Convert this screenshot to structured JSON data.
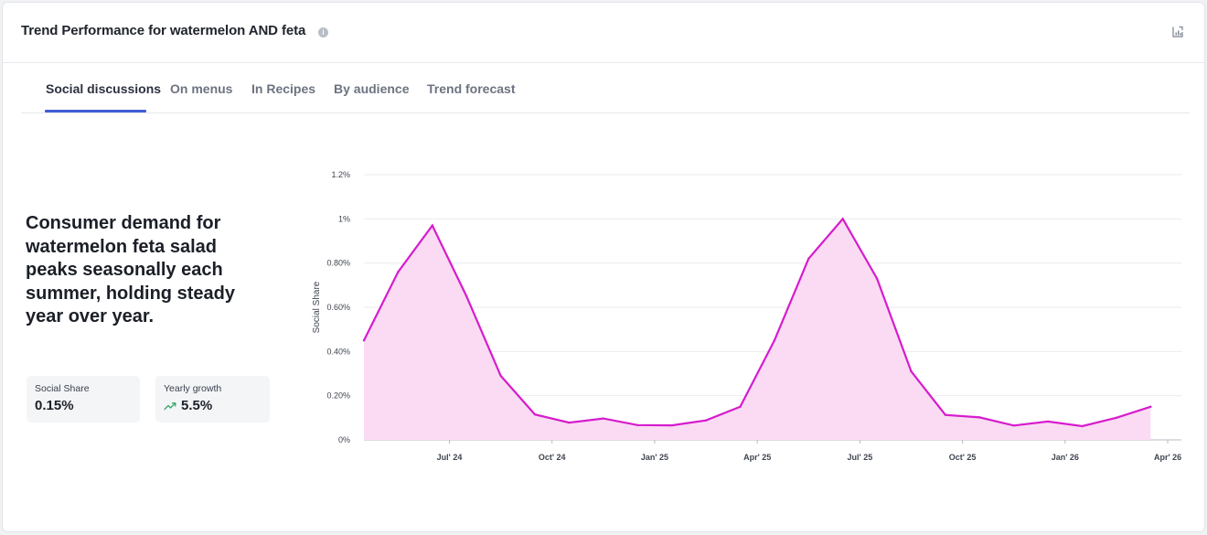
{
  "header": {
    "title": "Trend Performance for watermelon AND feta"
  },
  "tabs": [
    {
      "label": "Social discussions",
      "active": true
    },
    {
      "label": "On menus"
    },
    {
      "label": "In Recipes"
    },
    {
      "label": "By audience"
    },
    {
      "label": "Trend forecast"
    }
  ],
  "insight": {
    "headline": "Consumer demand for watermelon feta salad peaks seasonally each summer, holding steady year over year."
  },
  "stats": {
    "social_share": {
      "label": "Social Share",
      "value": "0.15%"
    },
    "yearly_growth": {
      "label": "Yearly growth",
      "value": "5.5%",
      "trend_icon": "trend-up-icon",
      "trend_color": "#3aa66a"
    }
  },
  "colors": {
    "line": "#d61ccd",
    "fill": "#fadbf3",
    "active_tab_underline": "#3f5ed4"
  },
  "chart_data": {
    "type": "area",
    "ylabel": "Social Share",
    "ylim": [
      0,
      1.2
    ],
    "y_ticks": [
      {
        "value": 0,
        "label": "0%"
      },
      {
        "value": 0.2,
        "label": "0.20%"
      },
      {
        "value": 0.4,
        "label": "0.40%"
      },
      {
        "value": 0.6,
        "label": "0.60%"
      },
      {
        "value": 0.8,
        "label": "0.80%"
      },
      {
        "value": 1.0,
        "label": "1%"
      },
      {
        "value": 1.2,
        "label": "1.2%"
      }
    ],
    "x_ticks": [
      "Jul' 24",
      "Oct' 24",
      "Jan' 25",
      "Apr' 25",
      "Jul' 25",
      "Oct' 25",
      "Jan' 26",
      "Apr' 26"
    ],
    "x_tick_index": [
      2.5,
      5.5,
      8.5,
      11.5,
      14.5,
      17.5,
      20.5,
      23.5
    ],
    "x_range": [
      0,
      23.9
    ],
    "grid": true,
    "series": [
      {
        "values": [
          0.45,
          0.76,
          0.97,
          0.65,
          0.29,
          0.115,
          0.078,
          0.097,
          0.067,
          0.066,
          0.088,
          0.15,
          0.45,
          0.82,
          1.0,
          0.73,
          0.31,
          0.113,
          0.102,
          0.065,
          0.083,
          0.062,
          0.1,
          0.15
        ]
      }
    ]
  }
}
